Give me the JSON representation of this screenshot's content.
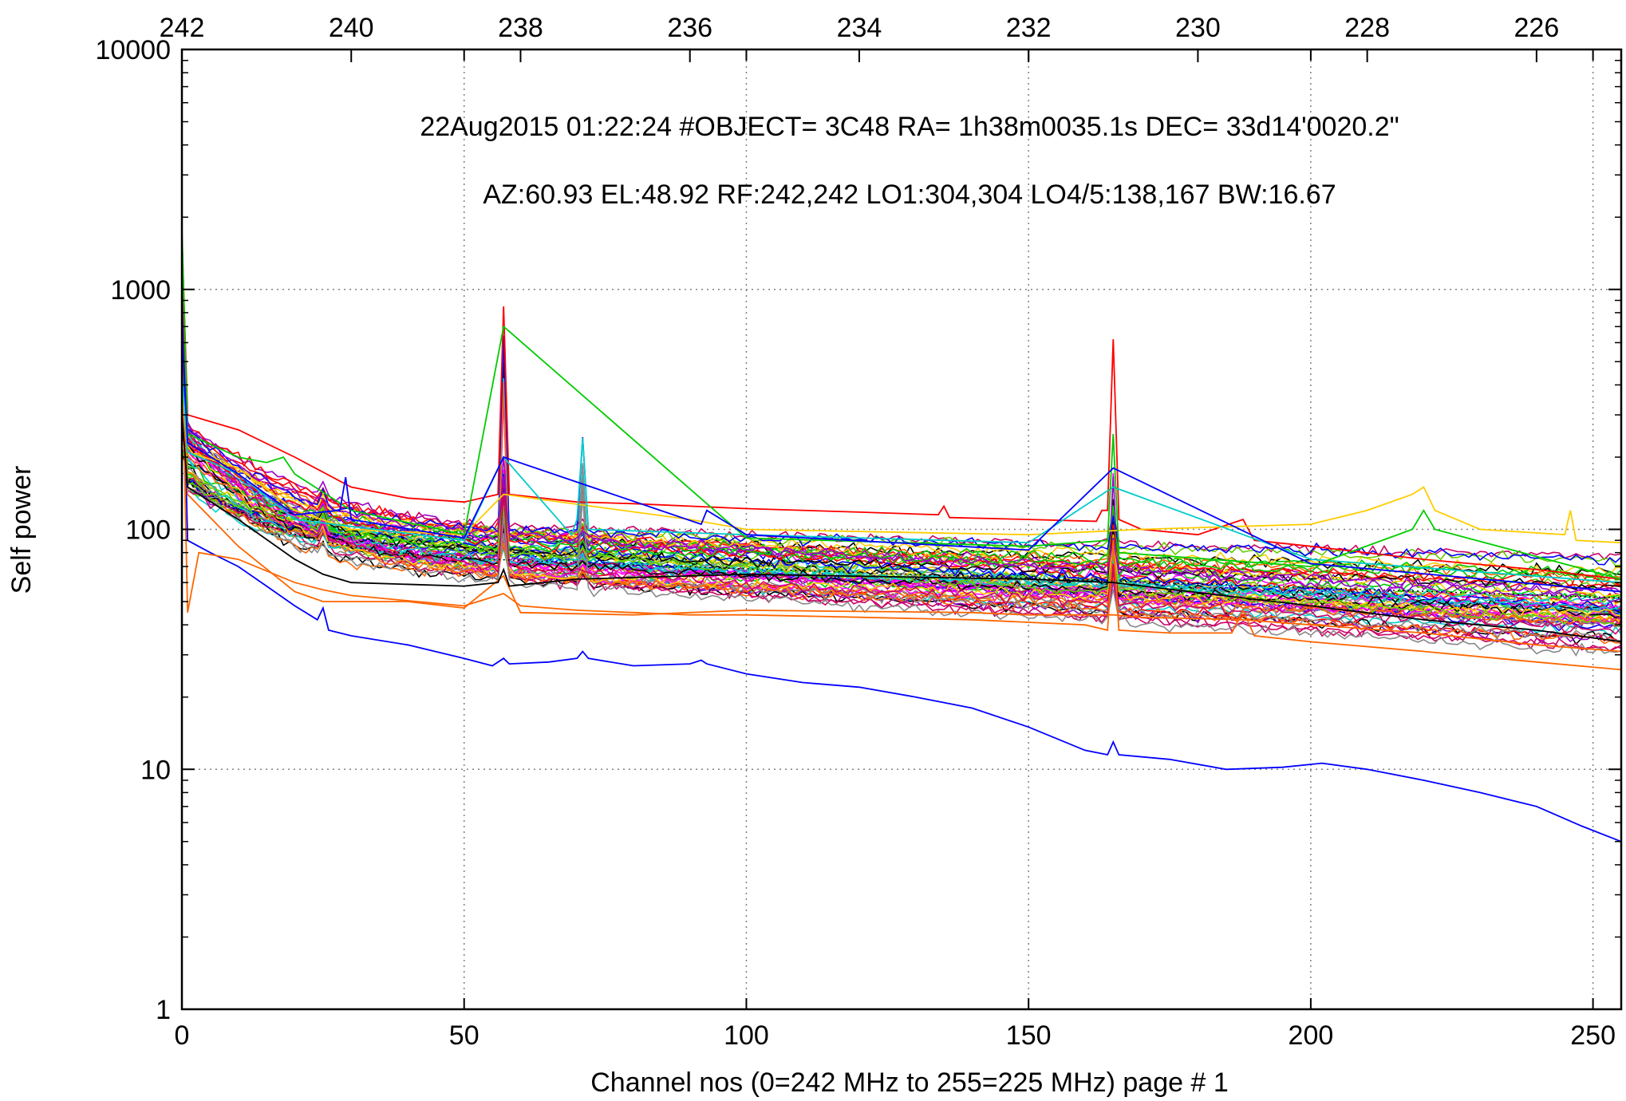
{
  "chart_data": {
    "type": "line",
    "ylabel": "Self power",
    "xlabel": "Channel nos (0=242 MHz to 255=225 MHz) page # 1",
    "header_line1": "22Aug2015 01:22:24  #OBJECT= 3C48 RA=   1h38m0035.1s DEC=  33d14'0020.2\"",
    "header_line2": "AZ:60.93  EL:48.92  RF:242,242    LO1:304,304    LO4/5:138,167    BW:16.67",
    "x_range": [
      0,
      255
    ],
    "y_range": [
      1,
      10000
    ],
    "y_scale": "log",
    "grid": true,
    "bottom_ticks": [
      0,
      50,
      100,
      150,
      200,
      250
    ],
    "bottom_tick_labels": [
      "0",
      "50",
      "100",
      "150",
      "200",
      "250"
    ],
    "left_ticks": [
      1,
      10,
      100,
      1000,
      10000
    ],
    "left_tick_labels": [
      "1",
      "10",
      "100",
      "1000",
      "10000"
    ],
    "top_ticks_mhz": [
      242,
      240,
      238,
      236,
      234,
      232,
      230,
      228,
      226
    ],
    "top_tick_labels": [
      "242",
      "240",
      "238",
      "236",
      "234",
      "232",
      "230",
      "228",
      "226"
    ],
    "top_axis_mapping": "channel = (242 - MHz) * 255 / 17",
    "series_colors": [
      "#ff0000",
      "#00cc00",
      "#0000ff",
      "#ff00ff",
      "#00cccc",
      "#000000",
      "#ff6600",
      "#ffcc00",
      "#888888",
      "#9900cc",
      "#66cc00",
      "#cc0066"
    ],
    "series_count": 60,
    "spectral_spikes_channel": [
      0,
      57,
      71,
      165
    ],
    "highlighted_series": [
      {
        "color": "#0000ff",
        "x": [
          0,
          1,
          5,
          10,
          15,
          20,
          24,
          25,
          26,
          30,
          40,
          50,
          55,
          57,
          58,
          65,
          70,
          71,
          72,
          80,
          90,
          92,
          93,
          100,
          110,
          120,
          130,
          140,
          150,
          160,
          164,
          165,
          166,
          175,
          185,
          195,
          202,
          210,
          220,
          230,
          240,
          248,
          255
        ],
        "y": [
          900,
          90,
          80,
          70,
          58,
          48,
          42,
          47,
          38,
          36,
          33,
          29,
          27,
          29,
          27.5,
          28,
          29,
          31,
          29,
          27,
          27.5,
          28.5,
          27.5,
          25,
          23,
          22,
          20,
          18,
          15,
          12,
          11.5,
          13,
          11.5,
          11,
          10,
          10.2,
          10.6,
          10,
          9,
          8,
          7,
          5.8,
          5
        ]
      },
      {
        "color": "#ff6600",
        "x": [
          0,
          1,
          3,
          10,
          20,
          25,
          30,
          50,
          57,
          60,
          70,
          80,
          90,
          100,
          120,
          140,
          160,
          164,
          165,
          166,
          175,
          186,
          188,
          190,
          200,
          220,
          240,
          255
        ],
        "y": [
          600,
          45,
          80,
          75,
          60,
          56,
          53,
          48,
          54,
          48,
          46,
          45,
          44,
          44,
          43,
          42,
          40,
          38,
          90,
          38,
          37,
          37,
          46,
          36,
          34,
          31,
          28,
          26
        ]
      },
      {
        "color": "#ff6600",
        "x": [
          0,
          1,
          10,
          20,
          25,
          40,
          50,
          57,
          60,
          80,
          100,
          140,
          150,
          160,
          165,
          170,
          188,
          200,
          220,
          240,
          255
        ],
        "y": [
          500,
          140,
          85,
          55,
          50,
          50,
          47,
          64,
          45,
          44,
          46,
          45,
          44,
          44,
          44,
          43,
          42,
          40,
          37,
          33,
          31
        ]
      },
      {
        "color": "#ff0000",
        "x": [
          0,
          1,
          10,
          20,
          30,
          40,
          50,
          56,
          57,
          58,
          70,
          80,
          100,
          120,
          134,
          135,
          136,
          150,
          162,
          163,
          164,
          165,
          166,
          170,
          180,
          188,
          190,
          200,
          220,
          240,
          255
        ],
        "y": [
          1700,
          300,
          260,
          200,
          150,
          135,
          130,
          140,
          850,
          140,
          130,
          128,
          122,
          118,
          115,
          125,
          112,
          110,
          108,
          120,
          120,
          620,
          110,
          100,
          95,
          110,
          90,
          85,
          75,
          68,
          62
        ]
      },
      {
        "color": "#000000",
        "x": [
          0,
          1,
          10,
          20,
          25,
          30,
          50,
          56,
          57,
          58,
          70,
          100,
          150,
          165,
          200,
          220,
          240,
          255
        ],
        "y": [
          300,
          150,
          110,
          75,
          65,
          60,
          58,
          60,
          68,
          58,
          62,
          65,
          62,
          60,
          48,
          42,
          38,
          34
        ]
      },
      {
        "color": "#ffcc00",
        "x": [
          0,
          1,
          10,
          20,
          30,
          50,
          57,
          90,
          100,
          150,
          170,
          200,
          210,
          218,
          220,
          222,
          230,
          245,
          246,
          247,
          255
        ],
        "y": [
          400,
          210,
          180,
          120,
          100,
          95,
          140,
          110,
          100,
          95,
          100,
          105,
          120,
          140,
          150,
          120,
          100,
          95,
          120,
          90,
          88
        ]
      },
      {
        "color": "#00cccc",
        "x": [
          0,
          1,
          10,
          20,
          50,
          57,
          69,
          70,
          71,
          72,
          100,
          150,
          165,
          200,
          255
        ],
        "y": [
          450,
          210,
          170,
          110,
          90,
          200,
          95,
          110,
          240,
          100,
          95,
          88,
          150,
          75,
          60
        ]
      },
      {
        "color": "#00cc00",
        "x": [
          0,
          1,
          10,
          15,
          18,
          20,
          30,
          50,
          57,
          100,
          150,
          164,
          165,
          166,
          200,
          218,
          220,
          222,
          255
        ],
        "y": [
          1800,
          250,
          200,
          190,
          200,
          170,
          120,
          95,
          700,
          92,
          85,
          90,
          250,
          80,
          70,
          100,
          120,
          100,
          62
        ]
      },
      {
        "color": "#0000ff",
        "x": [
          0,
          1,
          10,
          20,
          28,
          29,
          30,
          50,
          57,
          92,
          93,
          100,
          150,
          165,
          200,
          255
        ],
        "y": [
          700,
          230,
          170,
          115,
          120,
          165,
          110,
          92,
          200,
          105,
          120,
          95,
          82,
          180,
          72,
          55
        ]
      }
    ]
  }
}
